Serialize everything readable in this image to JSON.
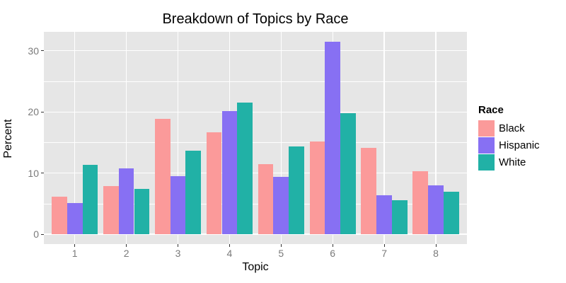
{
  "title": "Breakdown of Topics by Race",
  "chart_data": {
    "type": "bar",
    "grouped": true,
    "title": "Breakdown of Topics by Race",
    "xlabel": "Topic",
    "ylabel": "Percent",
    "categories": [
      "1",
      "2",
      "3",
      "4",
      "5",
      "6",
      "7",
      "8"
    ],
    "series": [
      {
        "name": "Black",
        "color": "#FB9A9A",
        "values": [
          6.1,
          7.9,
          18.9,
          16.7,
          11.5,
          15.2,
          14.1,
          10.3
        ]
      },
      {
        "name": "Hispanic",
        "color": "#8770F3",
        "values": [
          5.1,
          10.8,
          9.5,
          20.2,
          9.4,
          31.5,
          6.4,
          8.0
        ]
      },
      {
        "name": "White",
        "color": "#21B1A6",
        "values": [
          11.3,
          7.4,
          13.7,
          21.5,
          14.4,
          19.8,
          5.6,
          7.0
        ]
      }
    ],
    "y_major_ticks": [
      0,
      10,
      20,
      30
    ],
    "y_minor_ticks": [
      5,
      15,
      25
    ],
    "ylim": [
      -1.6,
      33.1
    ],
    "legend_title": "Race",
    "legend_position": "right",
    "grid": "on",
    "colors": {
      "panel_background": "#E6E6E6",
      "gridline": "#FFFFFF",
      "axis_text": "#7A7A7A",
      "tick_mark": "#333333",
      "title_text": "#000000"
    }
  },
  "legend": {
    "title": "Race",
    "items": [
      {
        "label": "Black",
        "color": "#FB9A9A"
      },
      {
        "label": "Hispanic",
        "color": "#8770F3"
      },
      {
        "label": "White",
        "color": "#21B1A6"
      }
    ]
  }
}
